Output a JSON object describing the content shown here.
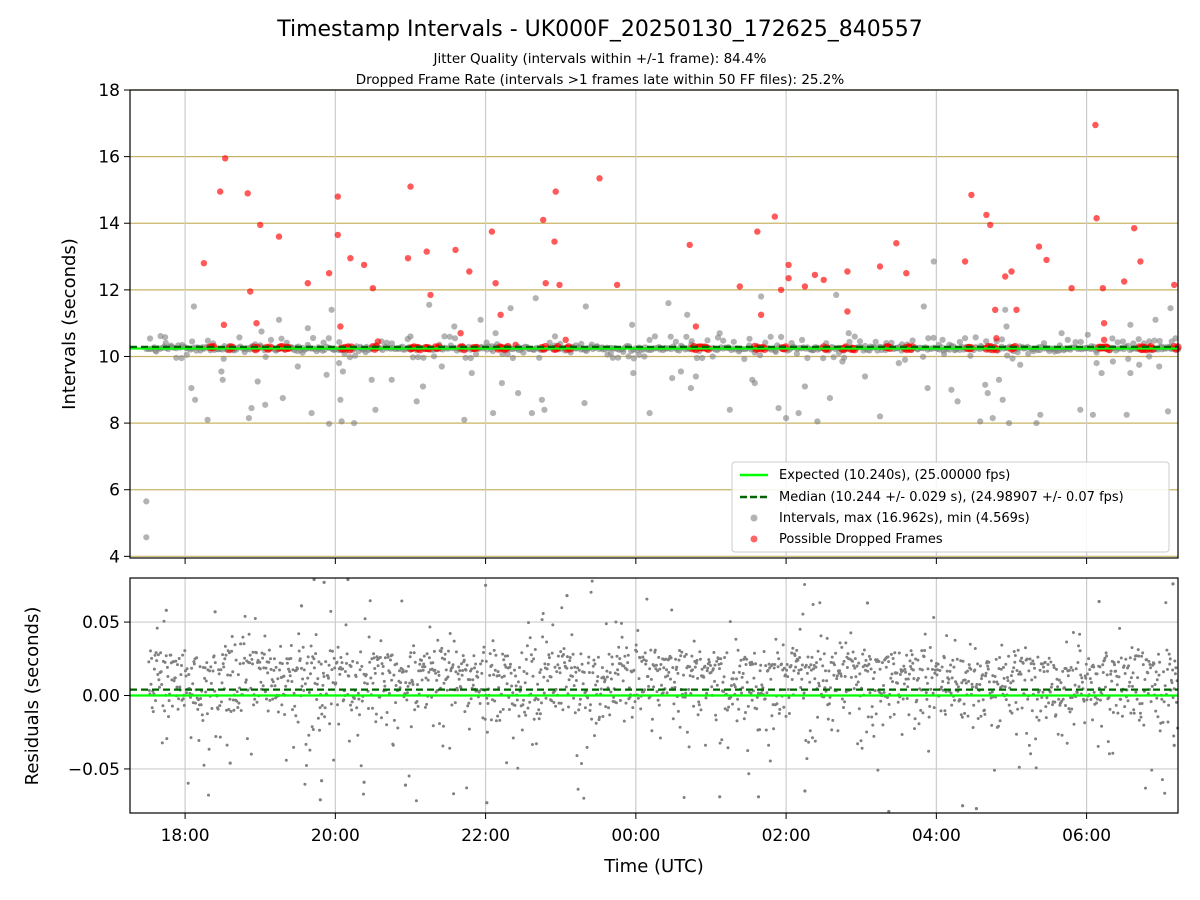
{
  "figure": {
    "title": "Timestamp Intervals - UK000F_20250130_172625_840557",
    "subtitle_1": "Jitter Quality (intervals within +/-1 frame): 84.4%",
    "subtitle_2": "Dropped Frame Rate (intervals >1 frames late within 50 FF files): 25.2%"
  },
  "colors": {
    "expected": "#00ff00",
    "median": "#006400",
    "intervals": "#808080",
    "dropped": "#ff0000",
    "hgrid": "#c8b464",
    "vgrid": "#cccccc"
  },
  "chart_data": [
    {
      "type": "scatter",
      "xlabel": "",
      "ylabel": "Intervals (seconds)",
      "xlim": [
        "17:16",
        "07:13"
      ],
      "ylim": [
        3.95,
        18
      ],
      "yticks": [
        "4",
        "6",
        "8",
        "10",
        "12",
        "14",
        "16",
        "18"
      ],
      "grid": "on",
      "legend_position": "lower-right",
      "legend": [
        "Expected (10.240s), (25.00000 fps)",
        "Median (10.244 +/- 0.029 s), (24.98907 +/- 0.07 fps)",
        "Intervals, max (16.962s), min (4.569s)",
        "Possible Dropped Frames"
      ],
      "expected_line": 10.24,
      "median_line": 10.244,
      "intervals_max": 16.962,
      "intervals_min": 4.569,
      "series": [
        {
          "name": "Intervals, max (16.962s), min (4.569s)",
          "points": [
            [
              "17:29",
              5.65
            ],
            [
              "17:29",
              4.57
            ],
            [
              "17:44",
              10.58
            ],
            [
              "18:05",
              9.05
            ],
            [
              "18:08",
              8.7
            ],
            [
              "18:07",
              11.5
            ],
            [
              "18:18",
              8.1
            ],
            [
              "18:29",
              9.55
            ],
            [
              "18:30",
              9.3
            ],
            [
              "18:51",
              8.15
            ],
            [
              "18:53",
              8.45
            ],
            [
              "18:58",
              9.25
            ],
            [
              "19:01",
              10.75
            ],
            [
              "19:04",
              8.55
            ],
            [
              "19:15",
              11.1
            ],
            [
              "19:18",
              8.75
            ],
            [
              "19:30",
              9.7
            ],
            [
              "19:38",
              10.85
            ],
            [
              "19:41",
              8.3
            ],
            [
              "19:53",
              9.45
            ],
            [
              "19:55",
              7.98
            ],
            [
              "19:57",
              11.4
            ],
            [
              "20:03",
              9.8
            ],
            [
              "20:04",
              8.7
            ],
            [
              "20:05",
              8.05
            ],
            [
              "20:06",
              9.55
            ],
            [
              "20:15",
              8.0
            ],
            [
              "20:29",
              9.3
            ],
            [
              "20:32",
              8.4
            ],
            [
              "20:45",
              9.3
            ],
            [
              "21:00",
              10.6
            ],
            [
              "21:05",
              8.65
            ],
            [
              "21:10",
              9.1
            ],
            [
              "21:15",
              11.55
            ],
            [
              "21:25",
              9.7
            ],
            [
              "21:35",
              10.9
            ],
            [
              "21:43",
              8.1
            ],
            [
              "21:49",
              9.5
            ],
            [
              "21:56",
              11.1
            ],
            [
              "22:06",
              8.3
            ],
            [
              "22:08",
              10.7
            ],
            [
              "22:13",
              9.2
            ],
            [
              "22:20",
              11.45
            ],
            [
              "22:26",
              8.9
            ],
            [
              "22:37",
              8.3
            ],
            [
              "22:40",
              11.75
            ],
            [
              "22:45",
              8.7
            ],
            [
              "22:47",
              8.4
            ],
            [
              "23:19",
              8.6
            ],
            [
              "23:20",
              11.5
            ],
            [
              "23:40",
              10.1
            ],
            [
              "23:57",
              10.95
            ],
            [
              "23:58",
              9.5
            ],
            [
              "00:11",
              8.3
            ],
            [
              "00:26",
              11.6
            ],
            [
              "00:29",
              9.35
            ],
            [
              "00:36",
              9.55
            ],
            [
              "00:41",
              11.25
            ],
            [
              "00:44",
              9.05
            ],
            [
              "00:48",
              9.4
            ],
            [
              "01:07",
              10.7
            ],
            [
              "01:15",
              8.4
            ],
            [
              "01:33",
              9.3
            ],
            [
              "01:35",
              9.2
            ],
            [
              "01:40",
              11.8
            ],
            [
              "01:54",
              8.45
            ],
            [
              "02:00",
              8.15
            ],
            [
              "02:10",
              8.3
            ],
            [
              "02:15",
              9.1
            ],
            [
              "02:20",
              10.2
            ],
            [
              "02:25",
              8.05
            ],
            [
              "02:32",
              10.4
            ],
            [
              "02:35",
              8.75
            ],
            [
              "02:40",
              11.85
            ],
            [
              "02:45",
              9.85
            ],
            [
              "02:50",
              10.7
            ],
            [
              "03:03",
              9.4
            ],
            [
              "03:15",
              8.2
            ],
            [
              "03:30",
              9.8
            ],
            [
              "03:35",
              9.9
            ],
            [
              "03:50",
              11.5
            ],
            [
              "03:53",
              9.05
            ],
            [
              "03:58",
              12.85
            ],
            [
              "04:05",
              10.5
            ],
            [
              "04:12",
              9.0
            ],
            [
              "04:17",
              8.65
            ],
            [
              "04:23",
              10.55
            ],
            [
              "04:35",
              8.05
            ],
            [
              "04:39",
              9.15
            ],
            [
              "04:41",
              8.9
            ],
            [
              "04:45",
              8.15
            ],
            [
              "04:50",
              9.3
            ],
            [
              "04:53",
              8.7
            ],
            [
              "04:55",
              11.4
            ],
            [
              "04:56",
              10.9
            ],
            [
              "04:58",
              8.0
            ],
            [
              "05:07",
              9.75
            ],
            [
              "05:20",
              8.0
            ],
            [
              "05:23",
              8.25
            ],
            [
              "05:40",
              10.7
            ],
            [
              "05:45",
              10.5
            ],
            [
              "05:55",
              8.4
            ],
            [
              "06:01",
              10.65
            ],
            [
              "06:05",
              8.25
            ],
            [
              "06:08",
              9.8
            ],
            [
              "06:12",
              9.5
            ],
            [
              "06:21",
              9.85
            ],
            [
              "06:32",
              8.25
            ],
            [
              "06:35",
              10.95
            ],
            [
              "06:35",
              9.5
            ],
            [
              "06:42",
              9.75
            ],
            [
              "06:50",
              10.0
            ],
            [
              "06:55",
              11.1
            ],
            [
              "06:58",
              9.7
            ],
            [
              "07:00",
              10.3
            ],
            [
              "07:05",
              8.35
            ],
            [
              "07:07",
              11.45
            ],
            [
              "07:08",
              10.45
            ]
          ]
        },
        {
          "name": "Possible Dropped Frames",
          "points": [
            [
              "18:15",
              12.8
            ],
            [
              "18:28",
              14.95
            ],
            [
              "18:32",
              15.95
            ],
            [
              "18:31",
              10.95
            ],
            [
              "18:50",
              14.9
            ],
            [
              "18:52",
              11.95
            ],
            [
              "18:57",
              11.0
            ],
            [
              "19:00",
              13.95
            ],
            [
              "19:15",
              13.6
            ],
            [
              "19:22",
              10.25
            ],
            [
              "19:38",
              12.2
            ],
            [
              "19:55",
              12.5
            ],
            [
              "20:02",
              14.8
            ],
            [
              "20:02",
              13.65
            ],
            [
              "20:04",
              10.9
            ],
            [
              "20:12",
              12.95
            ],
            [
              "20:23",
              12.75
            ],
            [
              "20:30",
              12.05
            ],
            [
              "20:34",
              10.45
            ],
            [
              "20:58",
              12.95
            ],
            [
              "21:00",
              15.1
            ],
            [
              "21:13",
              13.15
            ],
            [
              "21:16",
              11.85
            ],
            [
              "21:36",
              13.2
            ],
            [
              "21:40",
              10.7
            ],
            [
              "21:47",
              12.55
            ],
            [
              "22:05",
              13.75
            ],
            [
              "22:08",
              12.2
            ],
            [
              "22:12",
              11.25
            ],
            [
              "22:24",
              10.35
            ],
            [
              "22:46",
              14.1
            ],
            [
              "22:48",
              12.2
            ],
            [
              "22:55",
              13.45
            ],
            [
              "22:56",
              14.95
            ],
            [
              "22:59",
              12.15
            ],
            [
              "23:04",
              10.5
            ],
            [
              "23:31",
              15.35
            ],
            [
              "23:45",
              12.15
            ],
            [
              "00:43",
              13.35
            ],
            [
              "00:48",
              10.9
            ],
            [
              "01:23",
              12.1
            ],
            [
              "01:37",
              13.75
            ],
            [
              "01:40",
              11.25
            ],
            [
              "01:51",
              14.2
            ],
            [
              "01:56",
              12.0
            ],
            [
              "02:02",
              12.75
            ],
            [
              "02:02",
              12.35
            ],
            [
              "02:15",
              12.1
            ],
            [
              "02:23",
              12.45
            ],
            [
              "02:30",
              12.3
            ],
            [
              "02:49",
              12.55
            ],
            [
              "02:49",
              11.35
            ],
            [
              "03:15",
              12.7
            ],
            [
              "03:28",
              13.4
            ],
            [
              "03:36",
              12.5
            ],
            [
              "04:23",
              12.85
            ],
            [
              "04:28",
              14.85
            ],
            [
              "04:40",
              14.25
            ],
            [
              "04:43",
              13.95
            ],
            [
              "04:48",
              10.55
            ],
            [
              "04:47",
              11.4
            ],
            [
              "04:55",
              12.4
            ],
            [
              "05:00",
              12.55
            ],
            [
              "05:04",
              11.4
            ],
            [
              "05:22",
              13.3
            ],
            [
              "05:28",
              12.9
            ],
            [
              "05:48",
              12.05
            ],
            [
              "06:07",
              16.95
            ],
            [
              "06:08",
              14.15
            ],
            [
              "06:14",
              11.0
            ],
            [
              "06:13",
              12.05
            ],
            [
              "06:14",
              10.5
            ],
            [
              "06:30",
              12.25
            ],
            [
              "06:38",
              13.85
            ],
            [
              "06:43",
              12.85
            ],
            [
              "07:10",
              12.15
            ]
          ]
        }
      ]
    },
    {
      "type": "scatter",
      "xlabel": "Time (UTC)",
      "ylabel": "Residuals (seconds)",
      "xlim": [
        "17:16",
        "07:13"
      ],
      "ylim": [
        -0.08,
        0.08
      ],
      "yticks": [
        "−0.05",
        "0.00",
        "0.05"
      ],
      "xticks": [
        "18:00",
        "20:00",
        "22:00",
        "00:00",
        "02:00",
        "04:00",
        "06:00"
      ],
      "grid": "on",
      "zero_line": 0.0,
      "median_offset": 0.004,
      "series": [
        {
          "name": "",
          "points": [
            [
              "17:45",
              0.058
            ],
            [
              "18:24",
              0.057
            ],
            [
              "18:36",
              -0.046
            ],
            [
              "19:33",
              0.061
            ],
            [
              "19:43",
              0.079
            ],
            [
              "19:51",
              0.077
            ],
            [
              "19:48",
              -0.071
            ],
            [
              "20:10",
              0.079
            ],
            [
              "19:49",
              -0.058
            ],
            [
              "20:23",
              -0.059
            ],
            [
              "20:56",
              -0.061
            ],
            [
              "22:00",
              0.075
            ],
            [
              "22:01",
              -0.073
            ],
            [
              "23:05",
              0.068
            ],
            [
              "01:07",
              -0.069
            ],
            [
              "01:38",
              -0.069
            ],
            [
              "02:15",
              -0.065
            ],
            [
              "03:05",
              0.063
            ],
            [
              "03:22",
              -0.079
            ],
            [
              "04:21",
              -0.075
            ],
            [
              "04:32",
              -0.077
            ],
            [
              "06:10",
              0.064
            ],
            [
              "07:09",
              0.076
            ],
            [
              "07:10",
              -0.034
            ]
          ]
        }
      ]
    }
  ]
}
